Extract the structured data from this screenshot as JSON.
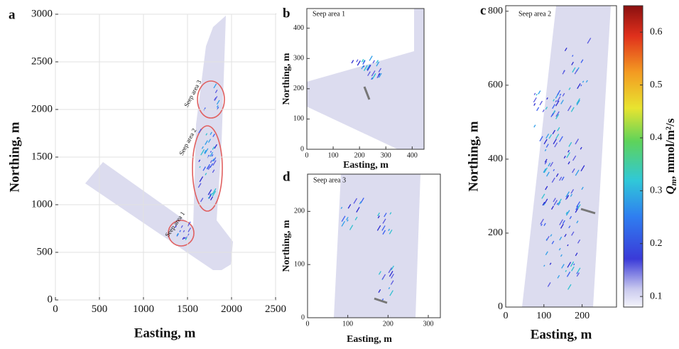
{
  "chart_data": [
    {
      "type": "map",
      "panel": "a",
      "xlabel": "Easting, m",
      "ylabel": "Northing, m",
      "xlim": [
        0,
        2500
      ],
      "ylim": [
        0,
        3000
      ],
      "xticks": [
        0,
        500,
        1000,
        1500,
        2000,
        2500
      ],
      "yticks": [
        0,
        500,
        1000,
        1500,
        2000,
        2500,
        3000
      ],
      "grid": true,
      "annotations": [
        "Seep area 1",
        "Seep area 2",
        "Seep area 3"
      ]
    },
    {
      "type": "map",
      "panel": "b",
      "title": "Seep area 1",
      "xlabel": "Easting, m",
      "ylabel": "Northing, m",
      "xlim": [
        0,
        445
      ],
      "ylim": [
        0,
        465
      ],
      "xticks": [
        0,
        100,
        200,
        300,
        400
      ],
      "yticks": [
        0,
        100,
        200,
        300,
        400
      ],
      "grid": false
    },
    {
      "type": "map",
      "panel": "c",
      "title": "Seep area 2",
      "xlabel": "Easting, m",
      "ylabel": "Northing, m",
      "xlim": [
        0,
        290
      ],
      "ylim": [
        0,
        815
      ],
      "xticks": [
        0,
        100,
        200
      ],
      "yticks": [
        0,
        200,
        400,
        600,
        800
      ],
      "grid": false
    },
    {
      "type": "map",
      "panel": "d",
      "title": "Seep area 3",
      "xlabel": "Easting, m",
      "ylabel": "Northing, m",
      "xlim": [
        0,
        330
      ],
      "ylim": [
        0,
        270
      ],
      "xticks": [
        0,
        100,
        200,
        300
      ],
      "yticks": [
        0,
        100,
        200
      ],
      "grid": false
    },
    {
      "type": "colorbar",
      "label_symbol": "Q",
      "label_subscript": "m",
      "label_units": ", mmol/m²/s",
      "ylim": [
        0.08,
        0.65
      ],
      "yticks": [
        0.1,
        0.2,
        0.3,
        0.4,
        0.5,
        0.6
      ]
    }
  ]
}
